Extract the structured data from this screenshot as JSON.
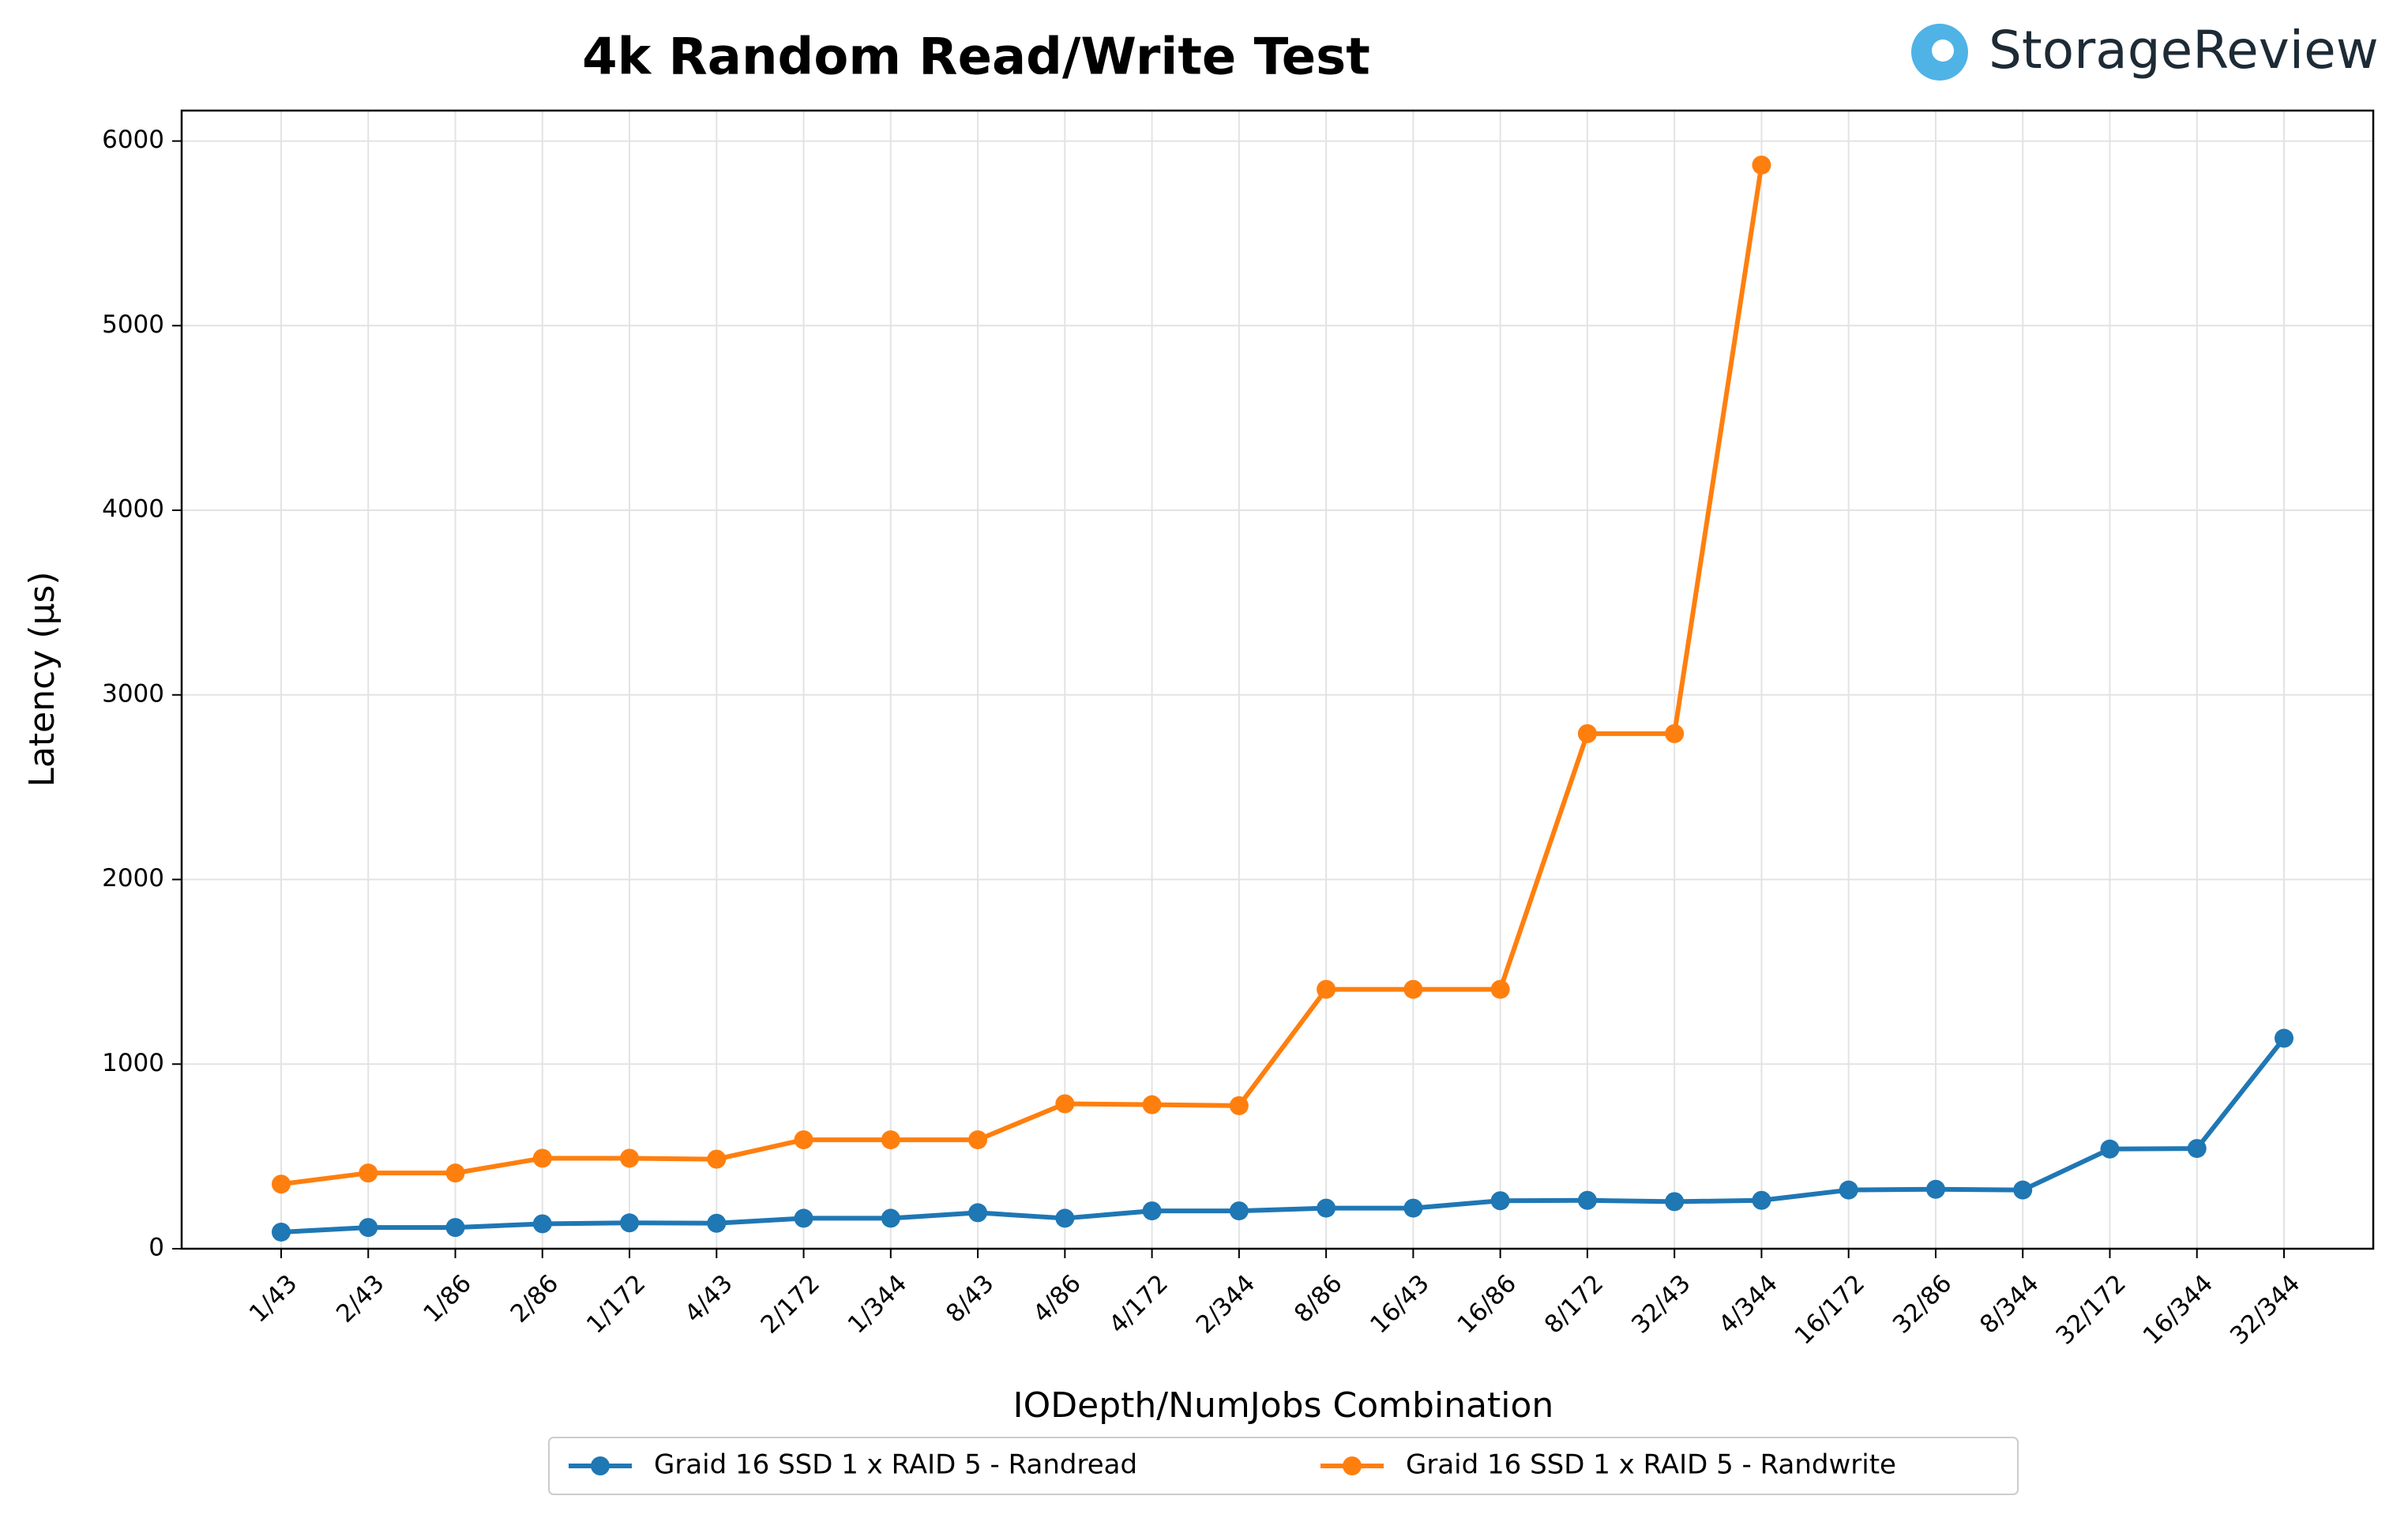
{
  "chart_data": {
    "type": "line",
    "title": "4k Random Read/Write Test",
    "logo": "StorageReview",
    "x_label": "IODepth/NumJobs Combination",
    "y_label": "Latency (µs)",
    "categories": [
      "1/43",
      "2/43",
      "1/86",
      "2/86",
      "1/172",
      "4/43",
      "2/172",
      "1/344",
      "8/43",
      "4/86",
      "4/172",
      "2/344",
      "8/86",
      "16/43",
      "16/86",
      "8/172",
      "32/43",
      "4/344",
      "16/172",
      "32/86",
      "8/344",
      "32/172",
      "16/344",
      "32/344"
    ],
    "series": [
      {
        "name": "Graid 16 SSD 1 x RAID 5 - Randread",
        "color": "#1f77b4",
        "values": [
          90,
          115,
          115,
          135,
          140,
          138,
          165,
          165,
          195,
          165,
          205,
          205,
          220,
          220,
          260,
          262,
          255,
          262,
          318,
          322,
          318,
          540,
          543,
          1140
        ]
      },
      {
        "name": "Graid 16 SSD 1 x RAID 5 - Randwrite",
        "color": "#ff7f0e",
        "values": [
          350,
          410,
          410,
          490,
          490,
          485,
          590,
          590,
          590,
          785,
          780,
          775,
          1405,
          1405,
          1405,
          2790,
          2790,
          5870,
          null,
          null,
          null,
          null,
          null,
          null
        ]
      }
    ],
    "ylim": [
      0,
      6165
    ],
    "yticks": [
      0,
      1000,
      2000,
      3000,
      4000,
      5000,
      6000
    ],
    "grid": true,
    "legend": "below"
  }
}
